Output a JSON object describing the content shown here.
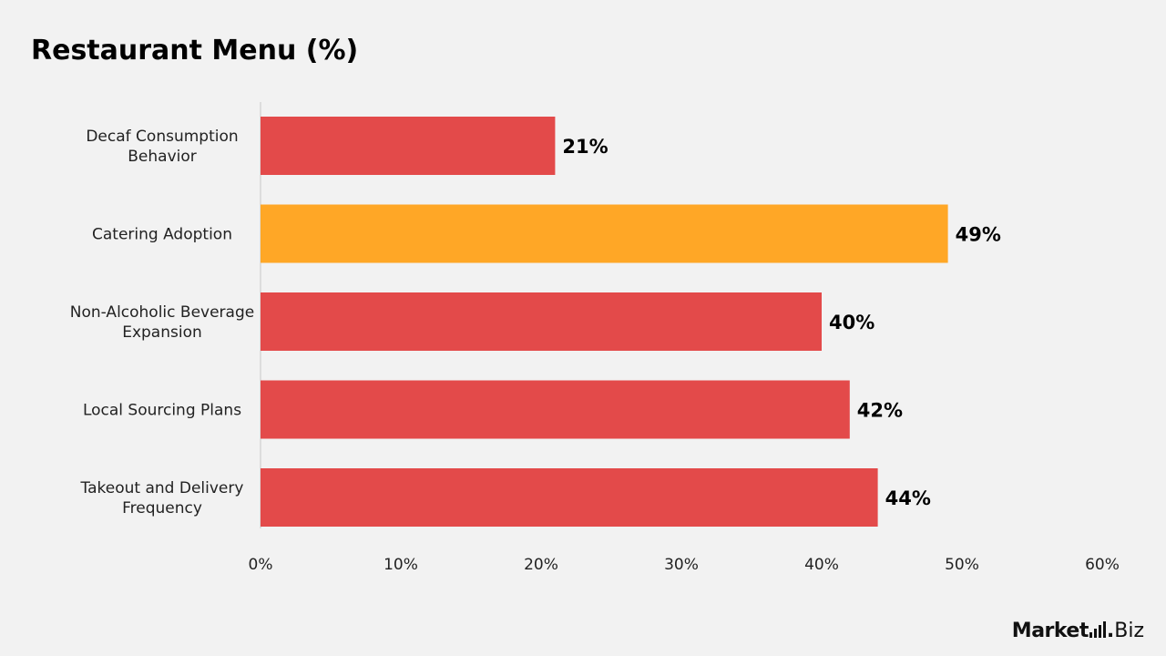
{
  "colors": {
    "background": "#f2f2f2",
    "bar_default": "#e34a4a",
    "bar_highlight": "#ffa726",
    "axis_line": "#c8c8c8"
  },
  "brand": {
    "name": "Market",
    "dot": ".",
    "suffix": "Biz"
  },
  "chart_data": {
    "type": "bar",
    "orientation": "horizontal",
    "title": "Restaurant Menu (%)",
    "xlabel": "",
    "ylabel": "",
    "categories": [
      "Decaf Consumption Behavior",
      "Catering Adoption",
      "Non-Alcoholic Beverage Expansion",
      "Local Sourcing Plans",
      "Takeout and Delivery Frequency"
    ],
    "values": [
      21,
      49,
      40,
      42,
      44
    ],
    "data_labels": [
      "21%",
      "49%",
      "40%",
      "42%",
      "44%"
    ],
    "highlight_index": 1,
    "xlim": [
      0,
      60
    ],
    "x_ticks": [
      0,
      10,
      20,
      30,
      40,
      50,
      60
    ],
    "x_tick_labels": [
      "0%",
      "10%",
      "20%",
      "30%",
      "40%",
      "50%",
      "60%"
    ],
    "grid": false,
    "legend": "none"
  }
}
